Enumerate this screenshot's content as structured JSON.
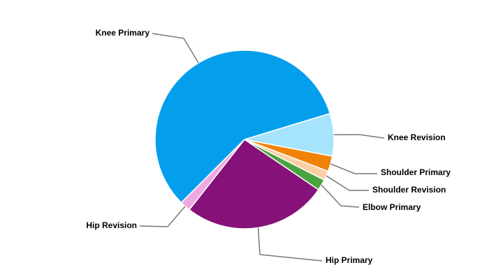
{
  "chart_data": {
    "type": "pie",
    "categories": [
      "Knee Primary",
      "Knee Revision",
      "Shoulder Primary",
      "Shoulder Revision",
      "Elbow Primary",
      "Hip Primary",
      "Hip Revision"
    ],
    "values": [
      57.8,
      7.7,
      2.8,
      1.7,
      2.0,
      26.1,
      1.9
    ],
    "colors": [
      "#039fed",
      "#a5e4fc",
      "#f08307",
      "#fccea5",
      "#4aa33f",
      "#861178",
      "#f0a9e0"
    ]
  }
}
